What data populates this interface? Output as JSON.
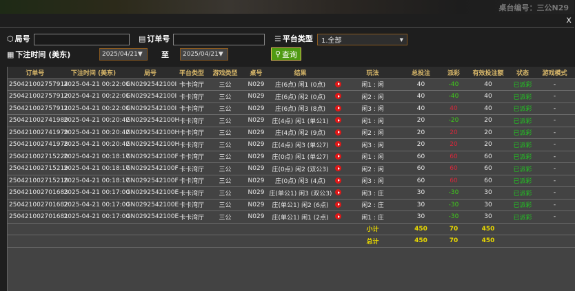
{
  "background": {
    "table_label": "桌台编号：三公N29"
  },
  "close_label": "x",
  "filters": {
    "round_label": "局号",
    "round_value": "",
    "order_label": "订单号",
    "order_value": "",
    "platform_label": "平台类型",
    "platform_value": "1.全部",
    "time_label": "下注时间 (美东)",
    "date_from": "2025/04/21",
    "to_label": "至",
    "date_to": "2025/04/21",
    "query_label": "查询"
  },
  "columns": [
    "订单号",
    "下注时间 (美东)",
    "局号",
    "平台类型",
    "游戏类型",
    "桌号",
    "结果",
    "",
    "玩法",
    "总投注",
    "派彩",
    "有效投注额",
    "状态",
    "游戏模式"
  ],
  "rows": [
    [
      "250421002757914",
      "2025-04-21 00:22:01",
      "GN0292542100I",
      "卡卡湾厅",
      "三公",
      "N029",
      "庄(6点) 闲1 (0点)",
      "闲1 : 闲",
      "40",
      "-40",
      "40",
      "已派彩",
      "-"
    ],
    [
      "250421002757912",
      "2025-04-21 00:22:01",
      "GN0292542100I",
      "卡卡湾厅",
      "三公",
      "N029",
      "庄(6点) 闲2 (0点)",
      "闲2 : 闲",
      "40",
      "-40",
      "40",
      "已派彩",
      "-"
    ],
    [
      "250421002757911",
      "2025-04-21 00:22:01",
      "GN0292542100I",
      "卡卡湾厅",
      "三公",
      "N029",
      "庄(6点) 闲3 (8点)",
      "闲3 : 闲",
      "40",
      "40",
      "40",
      "已派彩",
      "-"
    ],
    [
      "250421002741980",
      "2025-04-21 00:20:42",
      "GN0292542100H",
      "卡卡湾厅",
      "三公",
      "N029",
      "庄(4点) 闲1 (单公1)",
      "闲1 : 闲",
      "20",
      "-20",
      "20",
      "已派彩",
      "-"
    ],
    [
      "250421002741979",
      "2025-04-21 00:20:42",
      "GN0292542100H",
      "卡卡湾厅",
      "三公",
      "N029",
      "庄(4点) 闲2 (9点)",
      "闲2 : 闲",
      "20",
      "20",
      "20",
      "已派彩",
      "-"
    ],
    [
      "250421002741978",
      "2025-04-21 00:20:42",
      "GN0292542100H",
      "卡卡湾厅",
      "三公",
      "N029",
      "庄(4点) 闲3 (单公7)",
      "闲3 : 闲",
      "20",
      "20",
      "20",
      "已派彩",
      "-"
    ],
    [
      "250421002715220",
      "2025-04-21 00:18:17",
      "GN0292542100F",
      "卡卡湾厅",
      "三公",
      "N029",
      "庄(0点) 闲1 (单公7)",
      "闲1 : 闲",
      "60",
      "60",
      "60",
      "已派彩",
      "-"
    ],
    [
      "250421002715219",
      "2025-04-21 00:18:17",
      "GN0292542100F",
      "卡卡湾厅",
      "三公",
      "N029",
      "庄(0点) 闲2 (双公3)",
      "闲2 : 闲",
      "60",
      "60",
      "60",
      "已派彩",
      "-"
    ],
    [
      "250421002715218",
      "2025-04-21 00:18:17",
      "GN0292542100F",
      "卡卡湾厅",
      "三公",
      "N029",
      "庄(0点) 闲3 (4点)",
      "闲3 : 闲",
      "60",
      "60",
      "60",
      "已派彩",
      "-"
    ],
    [
      "250421002701683",
      "2025-04-21 00:17:00",
      "GN0292542100E",
      "卡卡湾厅",
      "三公",
      "N029",
      "庄(单公1) 闲3 (双公3)",
      "闲3 : 庄",
      "30",
      "-30",
      "30",
      "已派彩",
      "-"
    ],
    [
      "250421002701682",
      "2025-04-21 00:17:00",
      "GN0292542100E",
      "卡卡湾厅",
      "三公",
      "N029",
      "庄(单公1) 闲2 (6点)",
      "闲2 : 庄",
      "30",
      "-30",
      "30",
      "已派彩",
      "-"
    ],
    [
      "250421002701681",
      "2025-04-21 00:17:00",
      "GN0292542100E",
      "卡卡湾厅",
      "三公",
      "N029",
      "庄(单公1) 闲1 (2点)",
      "闲1 : 庄",
      "30",
      "-30",
      "30",
      "已派彩",
      "-"
    ]
  ],
  "subtotal": {
    "label": "小计",
    "total_bet": "450",
    "payout": "70",
    "valid_bet": "450"
  },
  "grandtotal": {
    "label": "总计",
    "total_bet": "450",
    "payout": "70",
    "valid_bet": "450"
  },
  "colors": {
    "negative_payout": "#3fcf1a",
    "positive_payout": "#d8263a",
    "status": "#22c622",
    "header_text": "#d9b86a",
    "totals": "#e8d800",
    "query_button": "#4f9a12"
  }
}
